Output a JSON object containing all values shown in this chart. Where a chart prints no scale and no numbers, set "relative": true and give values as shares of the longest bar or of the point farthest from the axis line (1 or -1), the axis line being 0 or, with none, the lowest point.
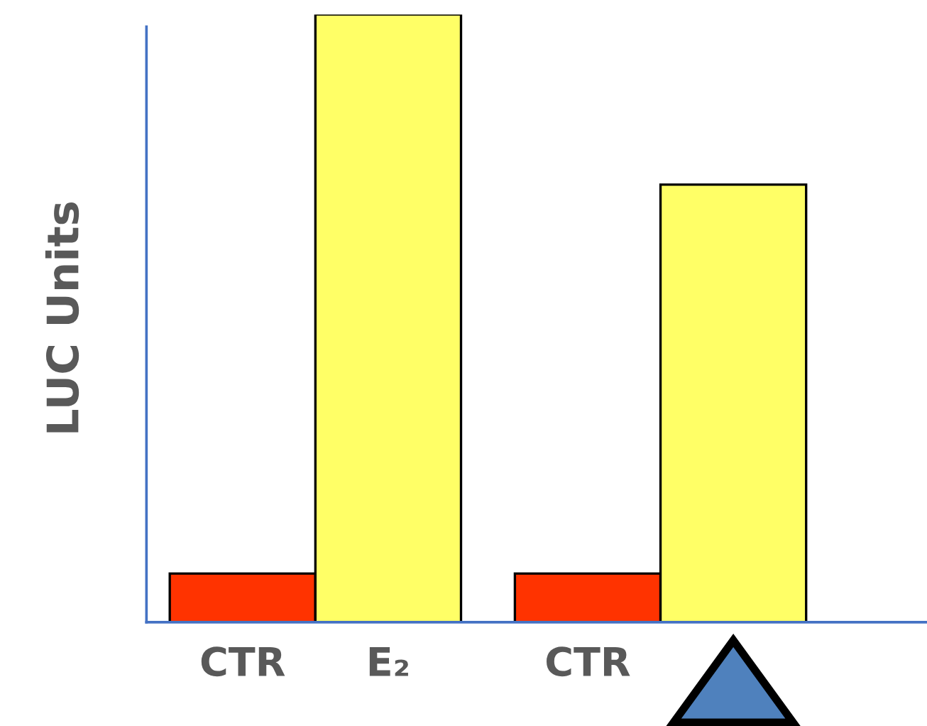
{
  "chart_data": {
    "type": "bar",
    "relative": true,
    "ylabel": "LUC Units",
    "categories": [
      "CTR",
      "E₂",
      "CTR",
      null
    ],
    "values": [
      0.08,
      1,
      0.08,
      0.72
    ],
    "colors": [
      "#ff3300",
      "#ffff66",
      "#ff3300",
      "#ffff66"
    ],
    "grid": false,
    "legend": false
  }
}
